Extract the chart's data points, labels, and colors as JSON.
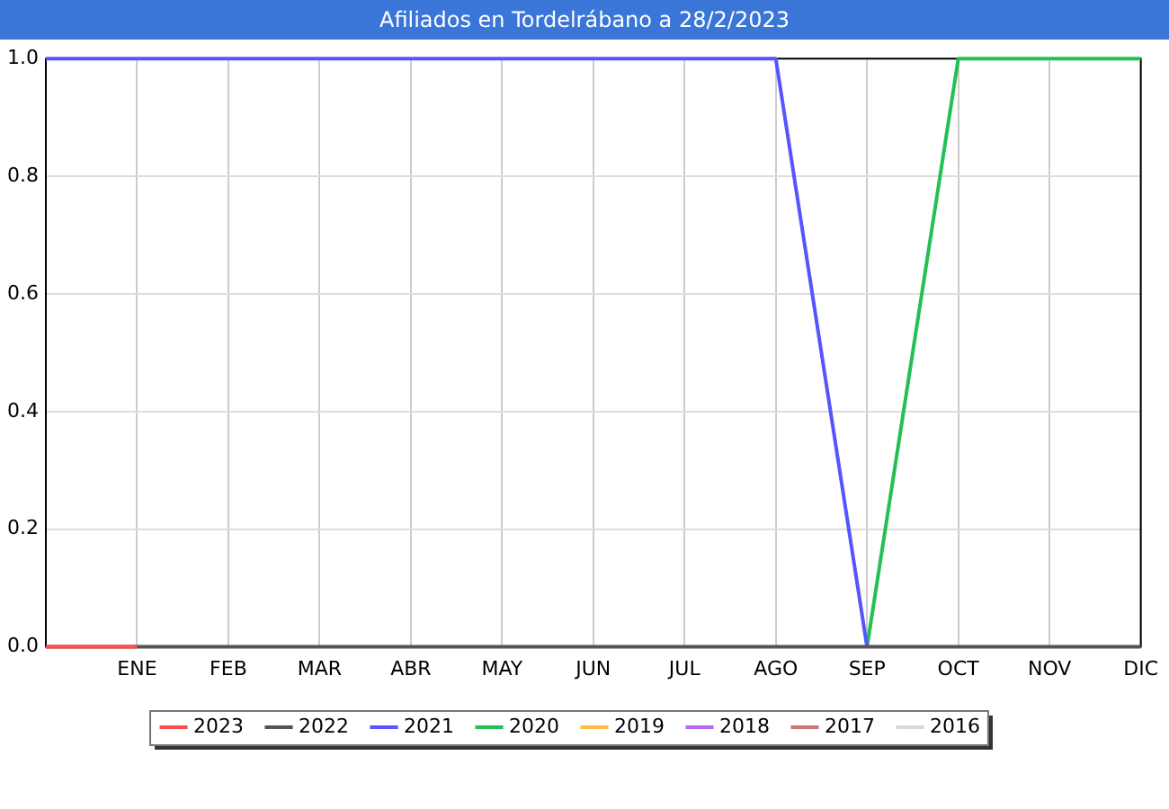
{
  "chart_data": {
    "type": "line",
    "title": "Afiliados en Tordelrábano a 28/2/2023",
    "categories": [
      null,
      "ENE",
      "FEB",
      "MAR",
      "ABR",
      "MAY",
      "JUN",
      "JUL",
      "AGO",
      "SEP",
      "OCT",
      "NOV",
      "DIC"
    ],
    "series": [
      {
        "name": "2023",
        "color": "#ff4d4d",
        "values": [
          0,
          0,
          null,
          null,
          null,
          null,
          null,
          null,
          null,
          null,
          null,
          null,
          null
        ]
      },
      {
        "name": "2022",
        "color": "#555555",
        "values": [
          0,
          0,
          0,
          0,
          0,
          0,
          0,
          0,
          0,
          0,
          0,
          0,
          0
        ]
      },
      {
        "name": "2021",
        "color": "#5555ff",
        "values": [
          1,
          1,
          1,
          1,
          1,
          1,
          1,
          1,
          1,
          0,
          null,
          null,
          null
        ]
      },
      {
        "name": "2020",
        "color": "#22c055",
        "values": [
          null,
          null,
          null,
          null,
          null,
          null,
          null,
          null,
          null,
          0,
          1,
          1,
          1
        ]
      },
      {
        "name": "2019",
        "color": "#ffbb44",
        "values": [
          null,
          null,
          null,
          null,
          null,
          null,
          null,
          null,
          null,
          null,
          null,
          null,
          null
        ]
      },
      {
        "name": "2018",
        "color": "#bb66ee",
        "values": [
          null,
          null,
          null,
          null,
          null,
          null,
          null,
          null,
          null,
          null,
          null,
          null,
          null
        ]
      },
      {
        "name": "2017",
        "color": "#cc7777",
        "values": [
          null,
          null,
          null,
          null,
          null,
          null,
          null,
          null,
          null,
          null,
          null,
          null,
          null
        ]
      },
      {
        "name": "2016",
        "color": "#d8d8d8",
        "values": [
          null,
          null,
          null,
          null,
          null,
          null,
          null,
          null,
          null,
          null,
          null,
          null,
          null
        ]
      }
    ],
    "ylim": [
      0,
      1
    ],
    "yticks": [
      {
        "value": 0,
        "label": "0.0"
      },
      {
        "value": 0.2,
        "label": "0.2"
      },
      {
        "value": 0.4,
        "label": "0.4"
      },
      {
        "value": 0.6,
        "label": "0.6"
      },
      {
        "value": 0.8,
        "label": "0.8"
      },
      {
        "value": 1,
        "label": "1.0"
      }
    ],
    "grid": true,
    "legend": "bottom",
    "marker": "none",
    "line_style": "solid"
  }
}
